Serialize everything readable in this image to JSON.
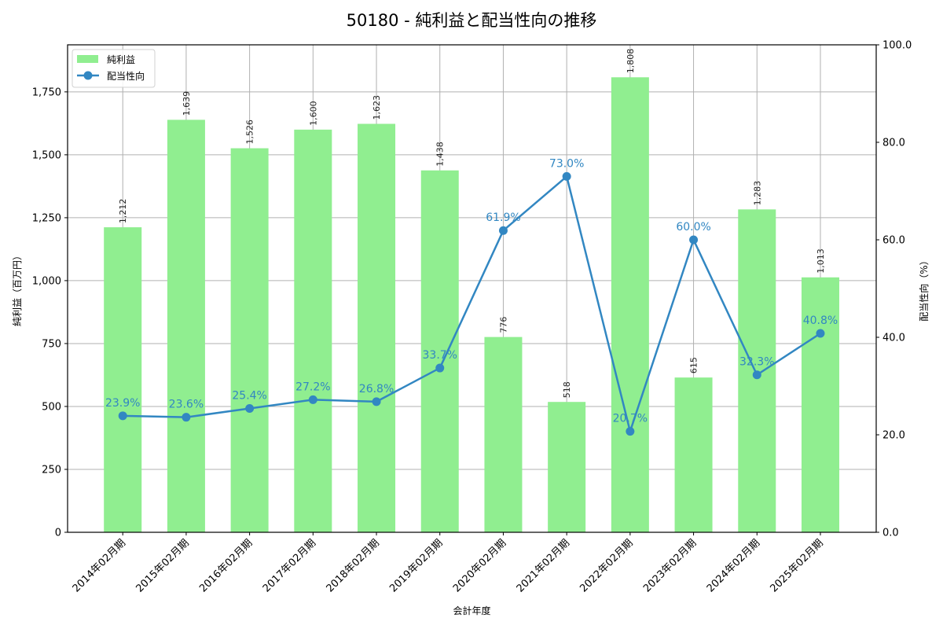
{
  "title": "50180 - 純利益と配当性向の推移",
  "colors": {
    "bar": "#90ee90",
    "line": "#3287c2",
    "grid": "#b0b0b0",
    "axis": "#000000"
  },
  "legend": {
    "bar_label": "純利益",
    "line_label": "配当性向"
  },
  "chart_data": {
    "type": "bar+line",
    "title": "50180 - 純利益と配当性向の推移",
    "xlabel": "会計年度",
    "ylabel": "純利益（百万円）",
    "y2label": "配当性向（%）",
    "categories": [
      "2014年02月期",
      "2015年02月期",
      "2016年02月期",
      "2017年02月期",
      "2018年02月期",
      "2019年02月期",
      "2020年02月期",
      "2021年02月期",
      "2022年02月期",
      "2023年02月期",
      "2024年02月期",
      "2025年02月期"
    ],
    "series": [
      {
        "name": "純利益",
        "type": "bar",
        "axis": "left",
        "values": [
          1212,
          1639,
          1526,
          1600,
          1623,
          1438,
          776,
          518,
          1808,
          615,
          1283,
          1013
        ],
        "labels": [
          "1,212",
          "1,639",
          "1,526",
          "1,600",
          "1,623",
          "1,438",
          "776",
          "518",
          "1,808",
          "615",
          "1,283",
          "1,013"
        ]
      },
      {
        "name": "配当性向",
        "type": "line",
        "axis": "right",
        "values": [
          23.9,
          23.6,
          25.4,
          27.2,
          26.8,
          33.7,
          61.9,
          73.0,
          20.7,
          60.0,
          32.3,
          40.8
        ],
        "labels": [
          "23.9%",
          "23.6%",
          "25.4%",
          "27.2%",
          "26.8%",
          "33.7%",
          "61.9%",
          "73.0%",
          "20.7%",
          "60.0%",
          "32.3%",
          "40.8%"
        ]
      }
    ],
    "ylim": [
      0,
      1937
    ],
    "y2lim": [
      0,
      100
    ],
    "yticks": [
      0,
      250,
      500,
      750,
      1000,
      1250,
      1500,
      1750
    ],
    "ytick_labels": [
      "0",
      "250",
      "500",
      "750",
      "1,000",
      "1,250",
      "1,500",
      "1,750"
    ],
    "y2ticks": [
      0,
      20,
      40,
      60,
      80,
      100
    ],
    "y2tick_labels": [
      "0.0",
      "20.0",
      "40.0",
      "60.0",
      "80.0",
      "100.0"
    ],
    "grid": true,
    "legend_position": "upper left"
  }
}
